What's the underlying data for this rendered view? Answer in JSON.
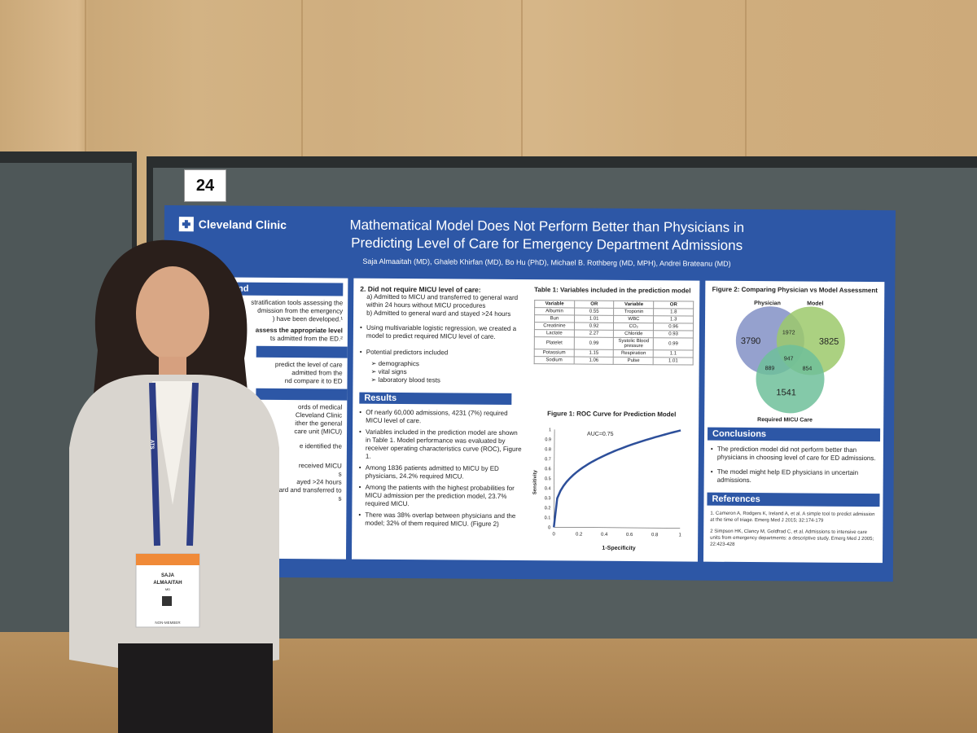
{
  "board_number": "24",
  "poster": {
    "logo_text": "Cleveland Clinic",
    "title_line1": "Mathematical Model Does Not Perform Better than Physicians in",
    "title_line2": "Predicting Level of Care for Emergency Department Admissions",
    "authors": "Saja Almaaitah (MD), Ghaleb Khirfan (MD), Bo Hu (PhD), Michael B. Rothberg (MD, MPH), Andrei Brateanu (MD)",
    "col1": {
      "heading": "und",
      "lines": [
        "stratification tools assessing the",
        "dmission from the emergency",
        ") have been developed.¹",
        "assess the appropriate level",
        "ts admitted from the ED.²",
        "predict the level of care",
        "admitted from the",
        "nd compare it to ED",
        "ords of medical",
        "Cleveland Clinic",
        "ither the general",
        "care unit (MICU)",
        "e identified the",
        "received MICU",
        "s",
        "ayed >24 hours",
        "ard and transferred to",
        "s"
      ]
    },
    "col2": {
      "did_not_require": "2. Did not require MICU level of care:",
      "sub_a": "a) Admitted to MICU and transferred to general ward within 24 hours without MICU procedures",
      "sub_b": "b) Admitted to general ward and stayed >24 hours",
      "regression": "Using multivariable logistic regression, we created a model to predict required MICU level of care.",
      "predictors_intro": "Potential predictors included",
      "predictors": [
        "demographics",
        "vital signs",
        "laboratory blood tests"
      ],
      "results_heading": "Results",
      "results": [
        "Of nearly 60,000 admissions, 4231 (7%) required MICU level of care.",
        "Variables included in the prediction model are shown in Table 1. Model performance was evaluated by receiver operating characteristics curve (ROC), Figure 1.",
        "Among 1836 patients admitted to MICU by ED physicians, 24.2% required MICU.",
        "Among the patients with the highest probabilities for MICU admission per the prediction model, 23.7% required MICU.",
        "There was 38% overlap between physicians and the model; 32% of them required MICU. (Figure 2)"
      ],
      "table_title": "Table 1: Variables included in the prediction model",
      "table_head": [
        "Variable",
        "OR",
        "Variable",
        "OR"
      ],
      "table_rows": [
        [
          "Albumin",
          "0.55",
          "Troponin",
          "1.8"
        ],
        [
          "Bun",
          "1.01",
          "WBC",
          "1.3"
        ],
        [
          "Creatinine",
          "0.92",
          "CO₂",
          "0.96"
        ],
        [
          "Lactate",
          "2.27",
          "Chloride",
          "0.93"
        ],
        [
          "Platelet",
          "0.99",
          "Systolic Blood pressure",
          "0.99"
        ],
        [
          "Potassium",
          "1.15",
          "Respiration",
          "1.1"
        ],
        [
          "Sodium",
          "1.06",
          "Pulse",
          "1.01"
        ]
      ],
      "roc_title": "Figure 1: ROC Curve for Prediction Model",
      "roc_auc": "AUC=0.75",
      "roc_xlabel": "1-Specificity",
      "roc_ylabel": "Sensitivity",
      "roc_xticks": [
        "0",
        "0.2",
        "0.4",
        "0.6",
        "0.8",
        "1"
      ],
      "roc_yticks": [
        "1",
        "0.9",
        "0.8",
        "0.7",
        "0.6",
        "0.5",
        "0.4",
        "0.3",
        "0.2",
        "0.1",
        "0"
      ]
    },
    "col3": {
      "venn_title": "Figure 2: Comparing Physician vs Model Assessment",
      "venn_labels": [
        "Physician",
        "Model",
        "Required MICU Care"
      ],
      "venn_values": [
        "3790",
        "1972",
        "3825",
        "947",
        "889",
        "854",
        "1541"
      ],
      "conclusions_heading": "Conclusions",
      "conclusions": [
        "The prediction model did not perform better than physicians in choosing level of care for ED admissions.",
        "The model might help ED physicians in uncertain admissions."
      ],
      "references_heading": "References",
      "references": [
        "1. Cameron A, Rodgers K, Ireland A, et al. A simple tool to predict admission at the time of triage. Emerg Med J 2015; 32:174-179",
        "2 Simpson HK, Clancy M, Goldfrad C, et al. Admissions to intensive care units from emergency departments: a descriptive study. Emerg Med J 2005; 22:423-428"
      ]
    }
  },
  "badge": {
    "name_line1": "SAJA",
    "name_line2": "ALMAAITAH",
    "degree": "MD",
    "footer": "NON-MEMBER"
  },
  "lanyard_text": "ATS"
}
